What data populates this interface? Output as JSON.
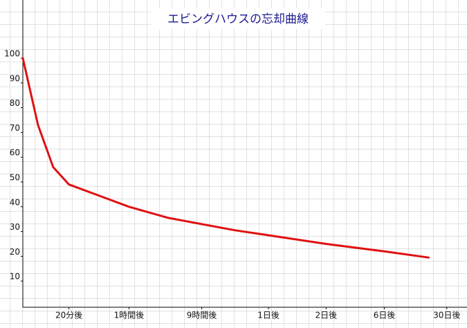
{
  "chart_data": {
    "type": "line",
    "title": "エビングハウスの忘却曲線",
    "x": [
      0,
      0.25,
      0.5,
      0.76,
      1.2,
      1.75,
      2.4,
      2.95,
      3.5,
      4.05,
      5.0,
      5.96,
      6.69
    ],
    "series": [
      {
        "name": "忘却曲線",
        "color": "#e01010",
        "values": [
          100,
          73,
          56,
          49,
          45,
          40,
          35.5,
          33,
          30.5,
          28.5,
          25,
          22,
          19.5
        ]
      }
    ],
    "xlim": [
      0,
      7.3
    ],
    "xticks": [
      {
        "value": 0.76,
        "label": "20分後"
      },
      {
        "value": 1.75,
        "label": "1時間後"
      },
      {
        "value": 2.95,
        "label": "9時間後"
      },
      {
        "value": 4.05,
        "label": "1日後"
      },
      {
        "value": 5.0,
        "label": "2日後"
      },
      {
        "value": 5.96,
        "label": "6日後"
      },
      {
        "value": 6.99,
        "label": "30日後"
      }
    ],
    "ylim": [
      0,
      100
    ],
    "yticks": [
      10,
      20,
      30,
      40,
      50,
      60,
      70,
      80,
      90,
      100
    ],
    "grid": true
  }
}
